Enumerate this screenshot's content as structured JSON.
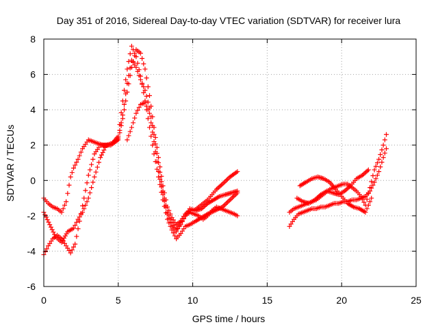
{
  "chart_data": {
    "type": "scatter",
    "title": "Day 351 of 2016, Sidereal Day-to-day VTEC variation (SDTVAR) for receiver lura",
    "xlabel": "GPS time / hours",
    "ylabel": "SDTVAR / TECUs",
    "xlim": [
      0,
      25
    ],
    "ylim": [
      -6,
      8
    ],
    "xticks": [
      0,
      5,
      10,
      15,
      20,
      25
    ],
    "yticks": [
      -6,
      -4,
      -2,
      0,
      2,
      4,
      6,
      8
    ],
    "xtick_labels": [
      "0",
      "5",
      "10",
      "15",
      "20",
      "25"
    ],
    "ytick_labels": [
      "-6",
      "-4",
      "-2",
      "0",
      "2",
      "4",
      "6",
      "8"
    ],
    "grid": true,
    "marker": "+",
    "color": "#ff0000",
    "series": [
      {
        "name": "track-1",
        "x": [
          0.0,
          0.3,
          0.6,
          0.9,
          1.2,
          1.5,
          1.8,
          2.0,
          2.3,
          2.6,
          3.0,
          3.3,
          3.6,
          4.0,
          4.5,
          5.0,
          5.3,
          5.6,
          5.9,
          6.2,
          6.5,
          6.8,
          7.1,
          7.4,
          7.7,
          8.0,
          8.3,
          8.6,
          8.9,
          9.2,
          9.5,
          9.8,
          10.1,
          10.4,
          10.7,
          11.0,
          11.3,
          11.6,
          12.0,
          12.5,
          13.0
        ],
        "y": [
          -1.0,
          -1.3,
          -1.5,
          -1.6,
          -1.8,
          -1.2,
          0.2,
          0.7,
          1.2,
          1.8,
          2.3,
          2.2,
          2.1,
          2.0,
          2.0,
          2.3,
          3.5,
          5.0,
          6.4,
          7.4,
          7.2,
          6.3,
          4.8,
          3.0,
          1.3,
          -0.3,
          -1.5,
          -2.1,
          -2.5,
          -2.3,
          -1.9,
          -1.7,
          -1.7,
          -1.5,
          -1.3,
          -1.1,
          -0.8,
          -0.5,
          -0.2,
          0.2,
          0.5
        ]
      },
      {
        "name": "track-2",
        "x": [
          0.0,
          0.3,
          0.6,
          0.9,
          1.2,
          1.5,
          1.8,
          2.1,
          2.4,
          2.7,
          3.0,
          3.4,
          3.8,
          4.2,
          4.6,
          5.0,
          5.3,
          5.6,
          5.9,
          6.2,
          6.5,
          6.8,
          7.1,
          7.4,
          7.7,
          8.0,
          8.3,
          8.6,
          8.9,
          9.2,
          9.5,
          9.8,
          10.2,
          10.6,
          11.0,
          11.5,
          12.0,
          12.5,
          13.0
        ],
        "y": [
          -4.2,
          -3.7,
          -3.3,
          -3.1,
          -3.3,
          -3.7,
          -4.1,
          -3.6,
          -2.3,
          -1.0,
          0.3,
          1.5,
          2.0,
          2.0,
          2.1,
          2.5,
          4.5,
          6.3,
          7.6,
          7.0,
          5.9,
          4.5,
          3.0,
          1.5,
          0.2,
          -1.1,
          -2.2,
          -2.8,
          -3.3,
          -3.0,
          -2.6,
          -2.5,
          -2.3,
          -2.1,
          -1.9,
          -1.7,
          -1.5,
          -1.1,
          -0.7
        ]
      },
      {
        "name": "track-3",
        "x": [
          0.0,
          0.4,
          0.8,
          1.2,
          1.6,
          2.0,
          2.3,
          2.6,
          3.0,
          3.4,
          3.8,
          4.2,
          4.6,
          5.0,
          5.3,
          5.6,
          5.9,
          6.2,
          6.5,
          6.8,
          7.1,
          7.4,
          7.7,
          8.0,
          8.3,
          8.6,
          8.9,
          9.2,
          9.5,
          9.8,
          10.2,
          10.6,
          11.0,
          11.4,
          11.8,
          12.2,
          12.6,
          13.0
        ],
        "y": [
          -1.8,
          -2.5,
          -3.2,
          -3.5,
          -2.9,
          -2.7,
          -2.2,
          -1.8,
          -1.0,
          0.2,
          1.3,
          2.0,
          2.1,
          2.4,
          3.7,
          5.5,
          6.8,
          6.4,
          5.7,
          5.1,
          4.1,
          2.6,
          1.0,
          -0.6,
          -1.8,
          -2.4,
          -2.8,
          -2.5,
          -2.0,
          -1.6,
          -1.7,
          -1.6,
          -1.3,
          -1.1,
          -0.9,
          -0.8,
          -0.7,
          -0.6
        ]
      },
      {
        "name": "track-4",
        "x": [
          5.6,
          5.9,
          6.2,
          6.5,
          6.8,
          7.1,
          7.4,
          7.7,
          8.0,
          8.3,
          8.6,
          8.9,
          9.2,
          9.5,
          9.8,
          10.1,
          10.4,
          10.7,
          11.0,
          11.3,
          11.6,
          11.9,
          12.2,
          12.5,
          12.8,
          13.0
        ],
        "y": [
          2.3,
          3.0,
          3.8,
          4.3,
          4.4,
          3.8,
          2.2,
          0.5,
          -0.8,
          -1.9,
          -2.6,
          -2.9,
          -2.4,
          -2.0,
          -1.8,
          -1.9,
          -2.0,
          -2.2,
          -2.0,
          -1.7,
          -1.5,
          -1.6,
          -1.7,
          -1.8,
          -1.9,
          -2.0
        ]
      },
      {
        "name": "track-5",
        "x": [
          16.5,
          16.8,
          17.1,
          17.4,
          17.7,
          18.0,
          18.3,
          18.6,
          18.9,
          19.2,
          19.5,
          19.8,
          20.1,
          20.4,
          20.7,
          21.0,
          21.3,
          21.6,
          21.9,
          22.2,
          22.5,
          22.8,
          23.0
        ],
        "y": [
          -2.6,
          -2.2,
          -1.9,
          -1.8,
          -1.7,
          -1.6,
          -1.6,
          -1.5,
          -1.5,
          -1.4,
          -1.3,
          -1.3,
          -1.2,
          -1.2,
          -1.1,
          -1.1,
          -1.0,
          -0.9,
          -0.6,
          -0.1,
          0.5,
          1.3,
          1.8
        ]
      },
      {
        "name": "track-6",
        "x": [
          16.5,
          16.8,
          17.1,
          17.4,
          17.7,
          18.0,
          18.3,
          18.6,
          18.9,
          19.2,
          19.5,
          19.8,
          20.1,
          20.4,
          20.7,
          21.0,
          21.3,
          21.6,
          21.9,
          22.2,
          22.5,
          22.8,
          23.0
        ],
        "y": [
          -1.8,
          -1.6,
          -1.5,
          -1.4,
          -1.3,
          -1.2,
          -1.1,
          -0.9,
          -0.7,
          -0.5,
          -0.4,
          -0.3,
          -0.2,
          -0.2,
          -0.4,
          -0.6,
          -0.9,
          -1.4,
          -0.4,
          0.6,
          1.2,
          2.0,
          2.6
        ]
      },
      {
        "name": "track-7",
        "x": [
          17.2,
          17.6,
          18.0,
          18.4,
          18.8,
          19.2,
          19.6,
          20.0,
          20.4,
          20.8,
          21.2,
          21.6,
          22.0
        ],
        "y": [
          -0.3,
          -0.1,
          0.1,
          0.2,
          0.1,
          -0.1,
          -0.5,
          -0.9,
          -1.3,
          -1.5,
          -1.6,
          -1.8,
          -1.0
        ]
      },
      {
        "name": "track-8",
        "x": [
          17.0,
          17.4,
          17.8,
          18.2,
          18.6,
          19.0,
          19.4,
          19.8,
          20.2,
          20.6,
          21.0,
          21.4,
          21.8
        ],
        "y": [
          -1.0,
          -1.2,
          -1.3,
          -1.1,
          -0.8,
          -0.6,
          -0.7,
          -0.8,
          -0.6,
          -0.3,
          0.1,
          0.3,
          0.6
        ]
      }
    ]
  }
}
